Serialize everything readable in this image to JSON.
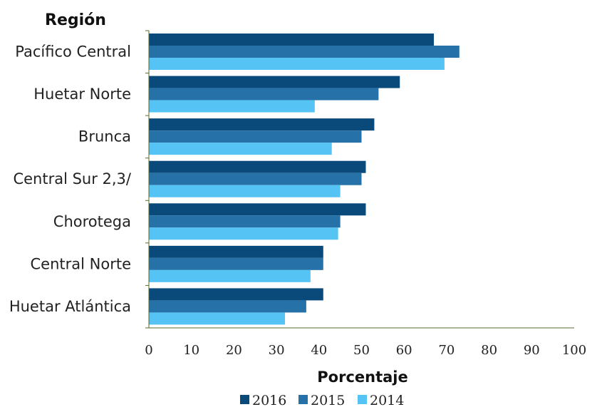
{
  "chart_data": {
    "type": "bar",
    "orientation": "horizontal",
    "ylabel": "Región",
    "xlabel": "Porcentaje",
    "categories": [
      "Pacífico Central",
      "Huetar Norte",
      "Brunca",
      "Central Sur 2,3/",
      "Chorotega",
      "Central Norte",
      "Huetar Atlántica"
    ],
    "series": [
      {
        "name": "2016",
        "color": "#0a4a7a",
        "values": [
          67,
          59,
          53,
          51,
          51,
          41,
          41
        ]
      },
      {
        "name": "2015",
        "color": "#2672a8",
        "values": [
          73,
          54,
          50,
          50,
          45,
          41,
          37
        ]
      },
      {
        "name": "2014",
        "color": "#55c4f5",
        "values": [
          69.5,
          39,
          43,
          45,
          44.5,
          38,
          32
        ]
      }
    ],
    "xlim": [
      0,
      100
    ],
    "xticks": [
      "0",
      "10",
      "20",
      "30",
      "40",
      "50",
      "60",
      "70",
      "80",
      "90",
      "100"
    ],
    "grid": false,
    "legend_position": "bottom"
  }
}
